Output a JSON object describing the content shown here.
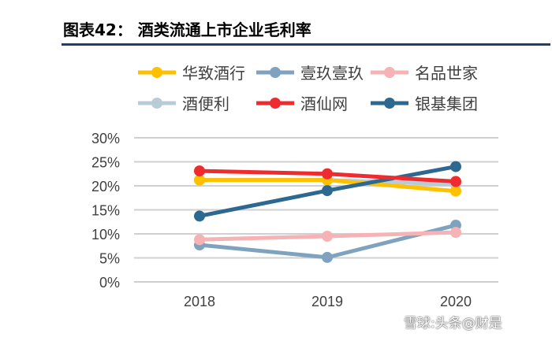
{
  "title": "图表42：  酒类流通上市企业毛利率",
  "watermark": "雪球:头条@财是",
  "chart_data": {
    "type": "line",
    "categories": [
      "2018",
      "2019",
      "2020"
    ],
    "ylim": [
      0,
      30
    ],
    "yticks": [
      "0%",
      "5%",
      "10%",
      "15%",
      "20%",
      "25%",
      "30%"
    ],
    "grid": true,
    "legend": "top",
    "series": [
      {
        "name": "华致酒行",
        "color": "#FFC000",
        "values": [
          21.2,
          21.2,
          18.9
        ]
      },
      {
        "name": "壹玖壹玖",
        "color": "#7FA3BE",
        "values": [
          7.7,
          5.1,
          11.8
        ]
      },
      {
        "name": "名品世家",
        "color": "#F6B3B5",
        "values": [
          8.8,
          9.5,
          10.3
        ]
      },
      {
        "name": "酒便利",
        "color": "#B8CCD8",
        "values": [
          21.2,
          21.2,
          20.3
        ]
      },
      {
        "name": "酒仙网",
        "color": "#EE2B2F",
        "values": [
          23.1,
          22.5,
          20.9
        ]
      },
      {
        "name": "银基集团",
        "color": "#2D6890",
        "values": [
          13.7,
          19.0,
          24.0
        ]
      }
    ]
  }
}
